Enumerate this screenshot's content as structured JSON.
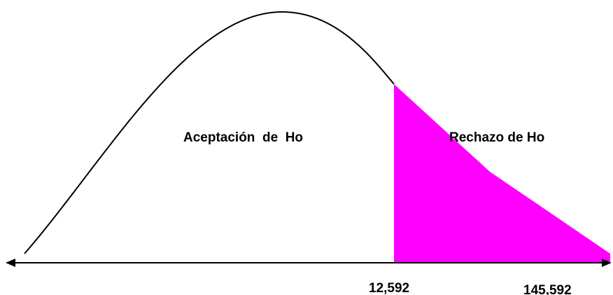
{
  "regions": [
    {
      "label": "Aceptación  de  Ho"
    },
    {
      "label": "Rechazo de Ho"
    }
  ],
  "axis_labels": [
    "12,592",
    "145,592"
  ]
}
